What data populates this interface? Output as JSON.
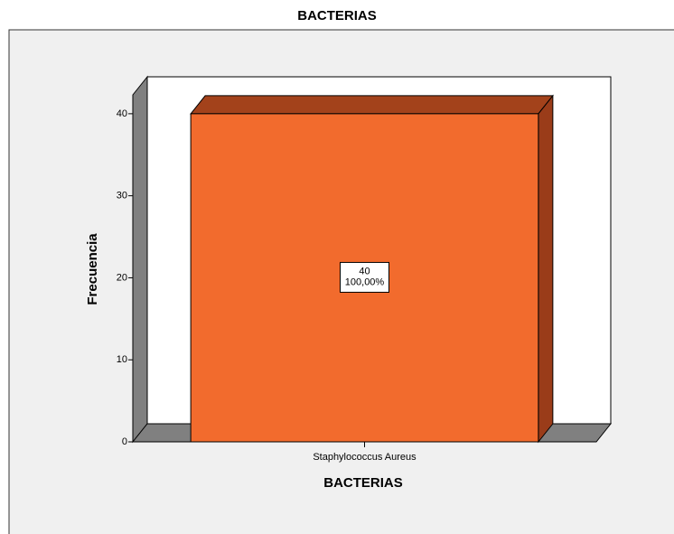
{
  "chart_data": {
    "type": "bar3d",
    "title": "BACTERIAS",
    "x_label": "BACTERIAS",
    "y_label": "Frecuencia",
    "categories": [
      "Staphylococcus Aureus"
    ],
    "values": [
      40
    ],
    "percentages": [
      100
    ],
    "percentage_labels": [
      "100,00%"
    ],
    "color": "#f26b2d",
    "top_color": "#a3421b",
    "side_color": "#9a3c19",
    "ylim": [
      0,
      42.3
    ],
    "yticks": [
      0,
      10,
      20,
      30,
      40
    ],
    "grid": false
  }
}
